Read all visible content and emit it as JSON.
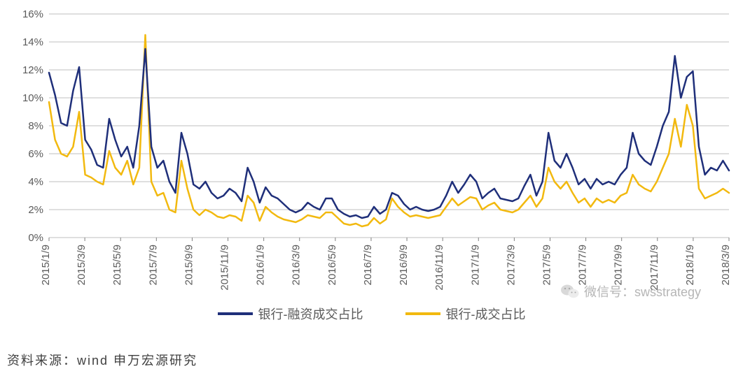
{
  "chart": {
    "type": "line",
    "background_color": "#ffffff",
    "grid_color": "#bfbfbf",
    "axis_color": "#808080",
    "axis_fontsize": 15,
    "line_width": 2.5,
    "ylim": [
      0,
      16
    ],
    "ytick_step": 2,
    "ytick_suffix": "%",
    "x_labels": [
      "2015/1/9",
      "2015/3/9",
      "2015/5/9",
      "2015/7/9",
      "2015/9/9",
      "2015/11/9",
      "2016/1/9",
      "2016/3/9",
      "2016/5/9",
      "2016/7/9",
      "2016/9/9",
      "2016/11/9",
      "2017/1/9",
      "2017/3/9",
      "2017/5/9",
      "2017/7/9",
      "2017/9/9",
      "2017/11/9",
      "2018/1/9",
      "2018/3/9"
    ],
    "series": [
      {
        "name": "银行-融资成交占比",
        "color": "#1f2f7a",
        "values": [
          11.8,
          10.2,
          8.2,
          8.0,
          10.5,
          12.2,
          7.0,
          6.3,
          5.2,
          5.0,
          8.5,
          7.0,
          5.8,
          6.5,
          5.0,
          8.0,
          13.5,
          6.5,
          5.0,
          5.5,
          4.0,
          3.2,
          7.5,
          6.0,
          3.8,
          3.5,
          4.0,
          3.2,
          2.8,
          3.0,
          3.5,
          3.2,
          2.6,
          5.0,
          4.0,
          2.5,
          3.6,
          3.0,
          2.8,
          2.4,
          2.0,
          1.8,
          2.0,
          2.5,
          2.2,
          2.0,
          2.8,
          2.8,
          2.0,
          1.7,
          1.5,
          1.6,
          1.4,
          1.5,
          2.2,
          1.7,
          2.0,
          3.2,
          3.0,
          2.4,
          2.0,
          2.2,
          2.0,
          1.9,
          2.0,
          2.2,
          3.0,
          4.0,
          3.2,
          3.8,
          4.5,
          4.0,
          2.8,
          3.2,
          3.5,
          2.8,
          2.7,
          2.6,
          2.8,
          3.7,
          4.5,
          3.0,
          4.0,
          7.5,
          5.5,
          5.0,
          6.0,
          5.0,
          3.8,
          4.2,
          3.5,
          4.2,
          3.8,
          4.0,
          3.8,
          4.5,
          5.0,
          7.5,
          6.0,
          5.5,
          5.2,
          6.5,
          8.0,
          9.0,
          13.0,
          10.0,
          11.5,
          11.9,
          6.5,
          4.5,
          5.0,
          4.8,
          5.5,
          4.8
        ]
      },
      {
        "name": "银行-成交占比",
        "color": "#f2b90f",
        "values": [
          9.7,
          7.0,
          6.0,
          5.8,
          6.5,
          9.0,
          4.5,
          4.3,
          4.0,
          3.8,
          6.2,
          5.0,
          4.5,
          5.5,
          3.8,
          5.0,
          14.5,
          4.0,
          3.0,
          3.2,
          2.0,
          1.8,
          5.5,
          3.5,
          2.0,
          1.6,
          2.0,
          1.8,
          1.5,
          1.4,
          1.6,
          1.5,
          1.2,
          3.0,
          2.5,
          1.2,
          2.2,
          1.8,
          1.5,
          1.3,
          1.2,
          1.1,
          1.3,
          1.6,
          1.5,
          1.4,
          1.8,
          1.8,
          1.4,
          1.0,
          0.9,
          1.0,
          0.8,
          0.9,
          1.4,
          1.0,
          1.3,
          2.8,
          2.2,
          1.8,
          1.5,
          1.6,
          1.5,
          1.4,
          1.5,
          1.6,
          2.2,
          2.8,
          2.3,
          2.6,
          2.9,
          2.8,
          2.0,
          2.3,
          2.5,
          2.0,
          1.9,
          1.8,
          2.0,
          2.5,
          3.0,
          2.2,
          2.8,
          5.0,
          4.0,
          3.5,
          4.0,
          3.2,
          2.5,
          2.8,
          2.2,
          2.8,
          2.5,
          2.7,
          2.5,
          3.0,
          3.2,
          4.5,
          3.8,
          3.5,
          3.3,
          4.0,
          5.0,
          6.0,
          8.5,
          6.5,
          9.5,
          8.0,
          3.5,
          2.8,
          3.0,
          3.2,
          3.5,
          3.2
        ]
      }
    ]
  },
  "legend": {
    "items": [
      {
        "label": "银行-融资成交占比",
        "color": "#1f2f7a"
      },
      {
        "label": "银行-成交占比",
        "color": "#f2b90f"
      }
    ]
  },
  "watermark": {
    "label": "微信号：swsstrategy"
  },
  "source": {
    "text": "资料来源：wind 申万宏源研究"
  }
}
